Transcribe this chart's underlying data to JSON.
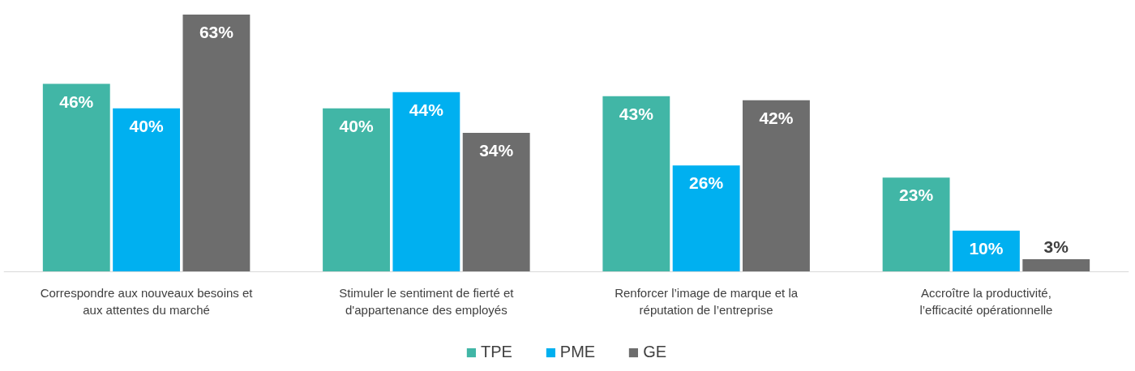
{
  "chart_data": {
    "type": "bar",
    "categories": [
      "Correspondre aux nouveaux besoins et aux attentes du marché",
      "Stimuler le sentiment de fierté et d'appartenance des employés",
      "Renforcer l’image de marque et la réputation de l’entreprise",
      "Accroître la productivité, l’efficacité opérationnelle"
    ],
    "series": [
      {
        "name": "TPE",
        "color": "#41b6a6",
        "values": [
          46,
          40,
          43,
          23
        ],
        "value_labels": [
          "46%",
          "40%",
          "43%",
          "23%"
        ]
      },
      {
        "name": "PME",
        "color": "#00b0f0",
        "values": [
          40,
          44,
          26,
          10
        ],
        "value_labels": [
          "40%",
          "44%",
          "26%",
          "10%"
        ]
      },
      {
        "name": "GE",
        "color": "#6d6d6d",
        "values": [
          63,
          34,
          42,
          3
        ],
        "value_labels": [
          "63%",
          "34%",
          "42%",
          "3%"
        ]
      }
    ],
    "legend": "bottom"
  }
}
